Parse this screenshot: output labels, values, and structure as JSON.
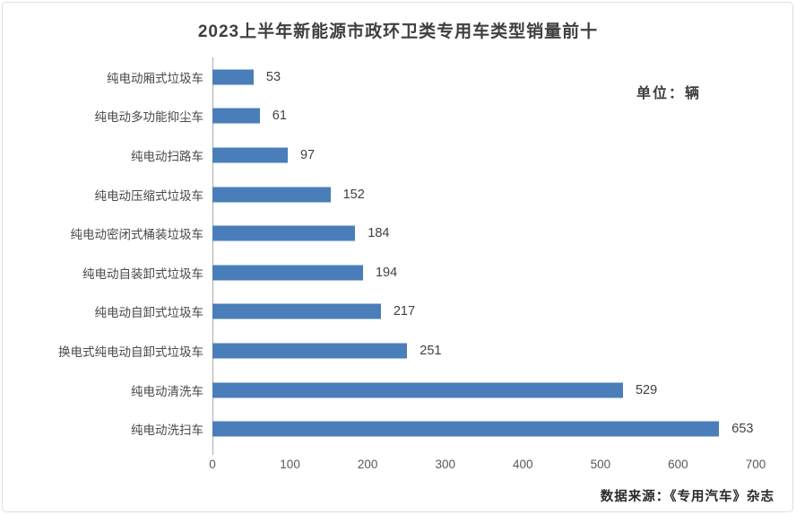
{
  "chart": {
    "title": "2023上半年新能源市政环卫类专用车类型销量前十",
    "unit_label": "单位：辆",
    "source": "数据来源：《专用汽车》杂志"
  },
  "chart_data": {
    "type": "bar",
    "orientation": "horizontal",
    "title": "2023上半年新能源市政环卫类专用车类型销量前十",
    "categories": [
      "纯电动厢式垃圾车",
      "纯电动多功能抑尘车",
      "纯电动扫路车",
      "纯电动压缩式垃圾车",
      "纯电动密闭式桶装垃圾车",
      "纯电动自装卸式垃圾车",
      "纯电动自卸式垃圾车",
      "换电式纯电动自卸式垃圾车",
      "纯电动清洗车",
      "纯电动洗扫车"
    ],
    "values": [
      53,
      61,
      97,
      152,
      184,
      194,
      217,
      251,
      529,
      653
    ],
    "xlabel": "",
    "ylabel": "",
    "xlim": [
      0,
      700
    ],
    "xticks": [
      0,
      100,
      200,
      300,
      400,
      500,
      600,
      700
    ],
    "grid": false,
    "legend": false,
    "bar_color": "#4A7EBB",
    "axis_line_color": "#ABABAB",
    "unit": "辆"
  }
}
